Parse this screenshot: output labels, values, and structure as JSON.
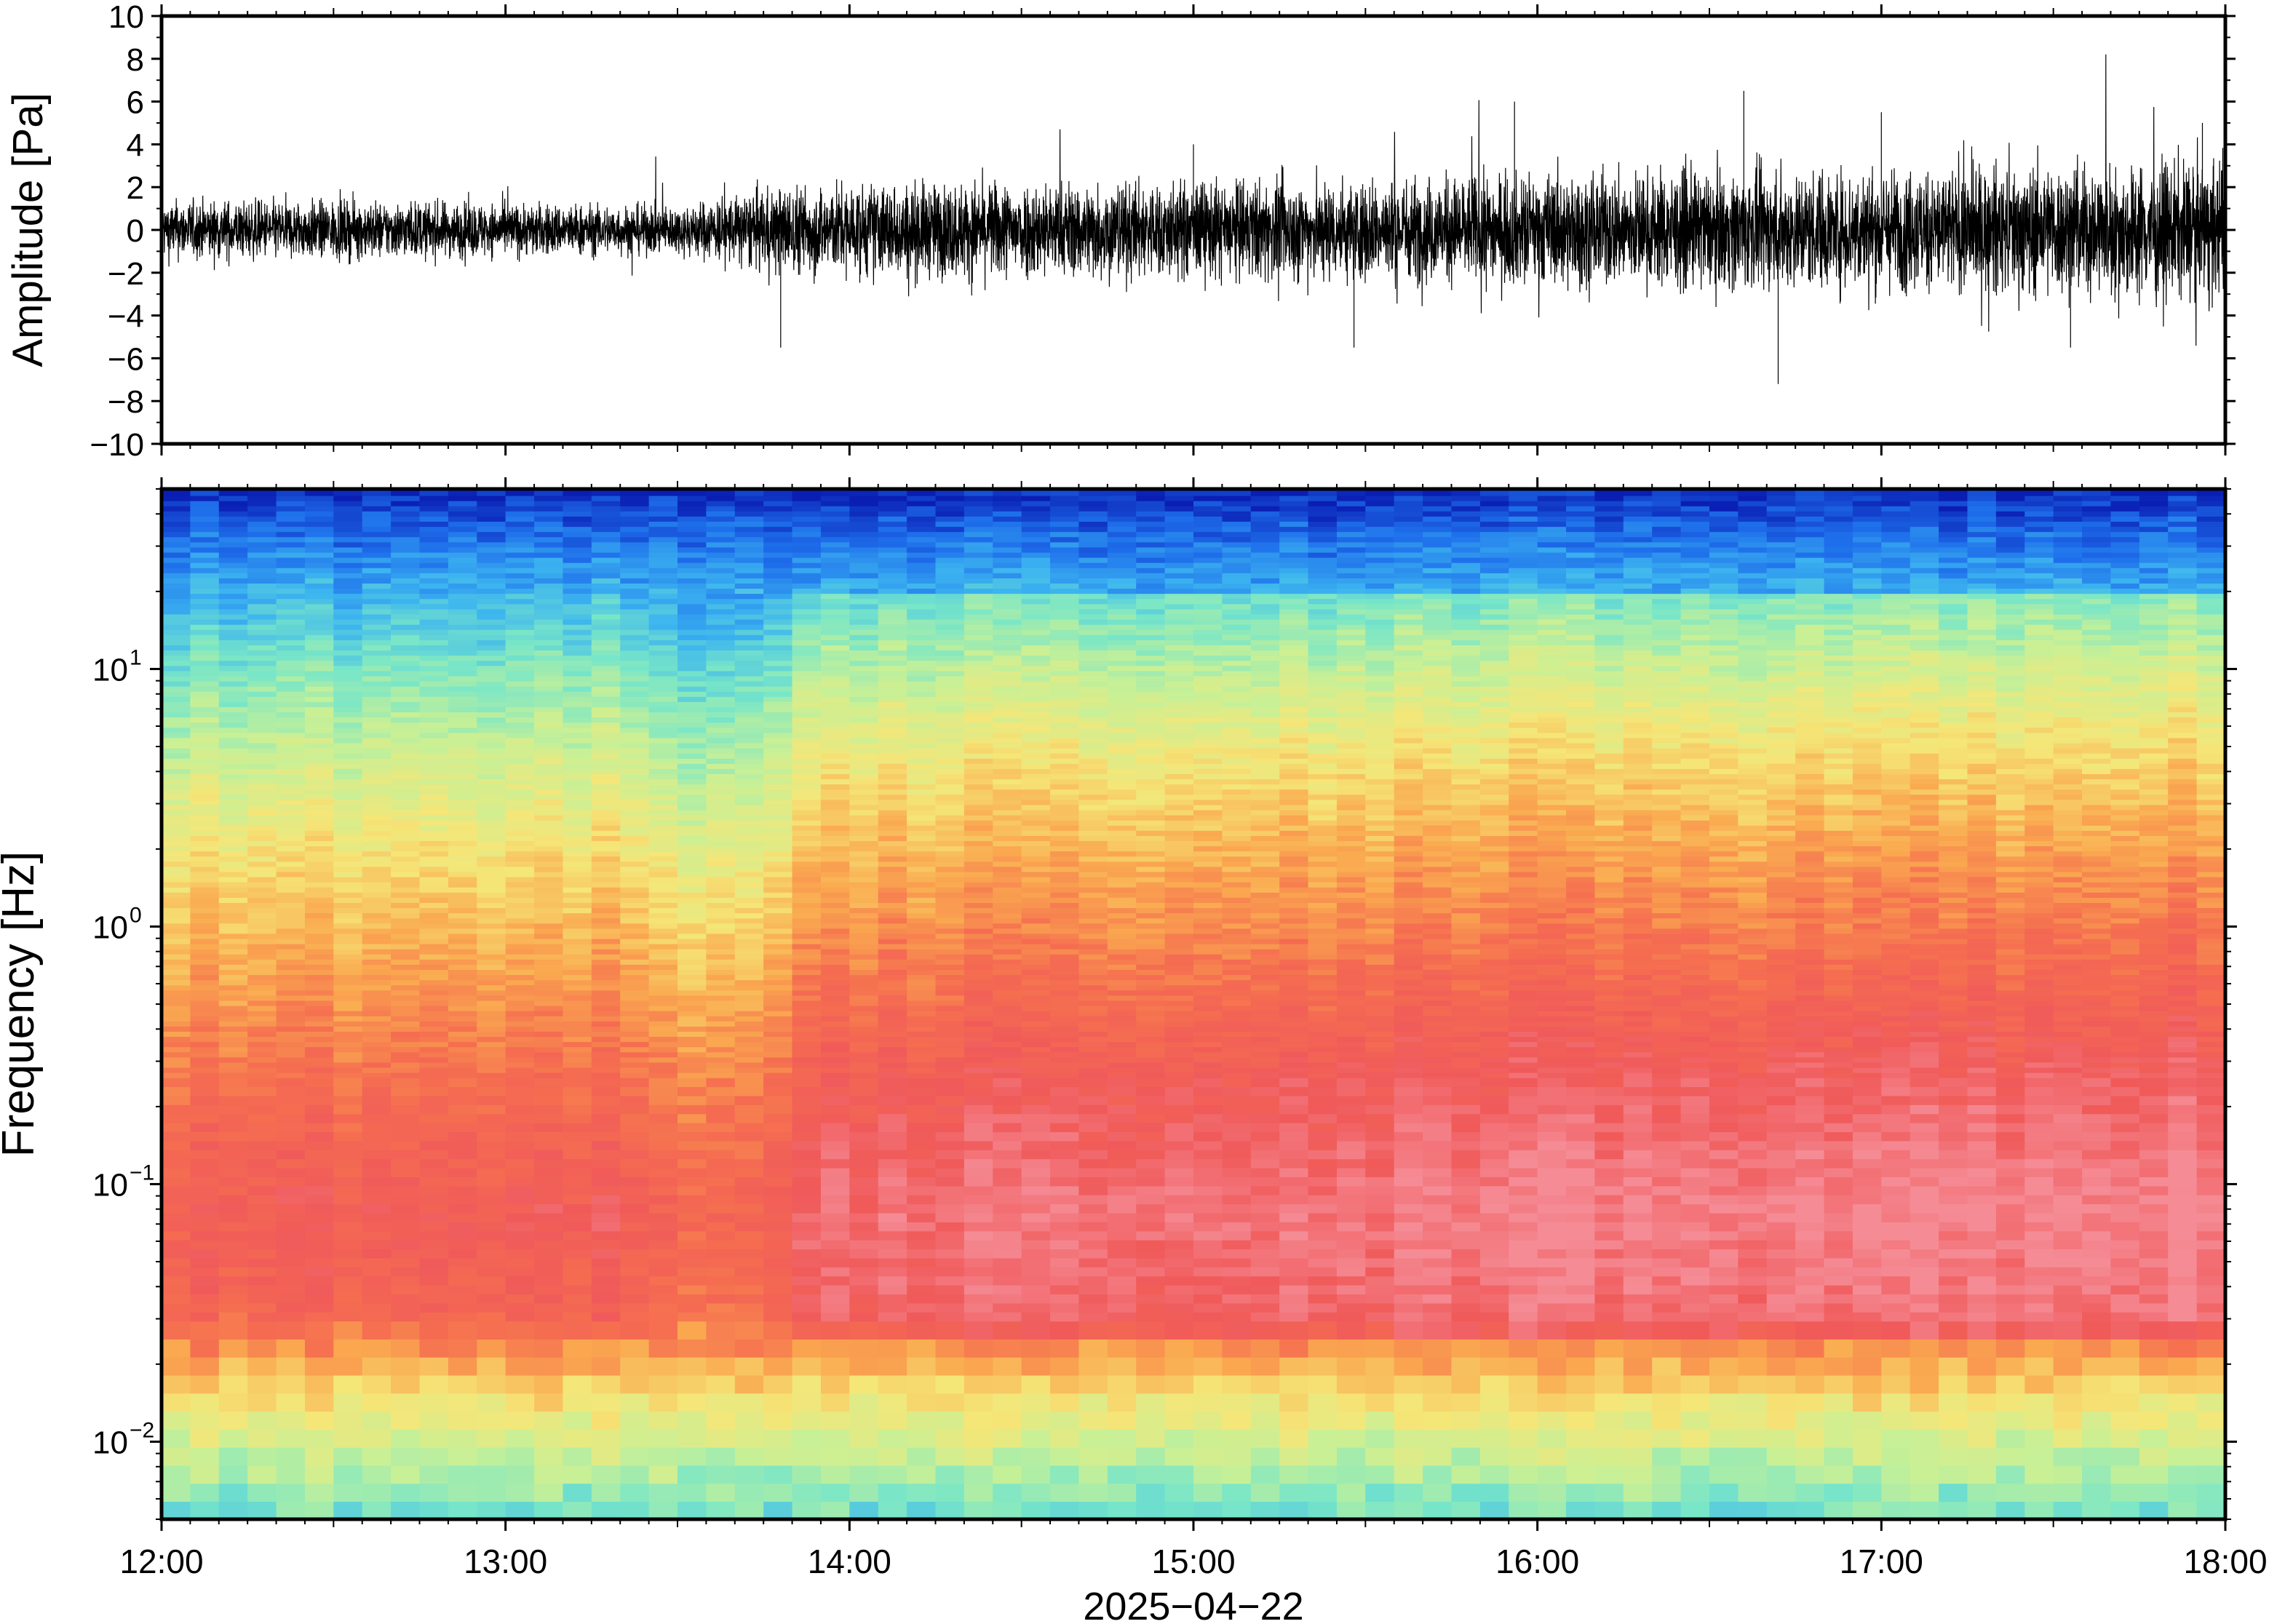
{
  "chart_data": [
    {
      "type": "line",
      "panel": "waveform",
      "ylabel": "Amplitude [Pa]",
      "ylim": [
        -10,
        10
      ],
      "y_ticks": [
        -10,
        -8,
        -6,
        -4,
        -2,
        0,
        2,
        4,
        6,
        8,
        10
      ],
      "y_tick_labels": [
        "−10",
        "−8",
        "−6",
        "−4",
        "−2",
        "0",
        "2",
        "4",
        "6",
        "8",
        "10"
      ],
      "xlim": [
        "12:00",
        "18:00"
      ],
      "series": [
        {
          "line_color": "#000000",
          "envelope_time_hours": [
            12.0,
            12.5,
            13.0,
            13.5,
            13.8,
            14.0,
            14.5,
            15.0,
            15.5,
            16.0,
            16.5,
            17.0,
            17.5,
            18.0
          ],
          "envelope_amplitude_pa": [
            1.2,
            1.2,
            1.1,
            1.0,
            1.8,
            1.9,
            2.0,
            2.0,
            2.1,
            2.3,
            2.4,
            2.5,
            2.7,
            2.8
          ],
          "peaks": [
            {
              "time": "13:48",
              "value": -5.5
            },
            {
              "time": "15:00",
              "value": 4.0
            },
            {
              "time": "15:28",
              "value": -5.5
            },
            {
              "time": "15:56",
              "value": 6.0
            },
            {
              "time": "16:36",
              "value": 6.5
            },
            {
              "time": "16:42",
              "value": -7.2
            },
            {
              "time": "17:00",
              "value": 5.5
            },
            {
              "time": "17:33",
              "value": -5.5
            },
            {
              "time": "17:56",
              "value": 5.0
            }
          ]
        }
      ]
    },
    {
      "type": "heatmap",
      "panel": "spectrogram",
      "ylabel": "Frequency [Hz]",
      "yscale": "log",
      "ylim_hz": [
        0.005,
        50
      ],
      "y_ticks_hz": [
        0.01,
        0.1,
        1,
        10
      ],
      "y_tick_labels": [
        {
          "base": "10",
          "exp": "−2"
        },
        {
          "base": "10",
          "exp": "−1"
        },
        {
          "base": "10",
          "exp": "0"
        },
        {
          "base": "10",
          "exp": "1"
        }
      ],
      "x_tick_labels": [
        "12:00",
        "13:00",
        "14:00",
        "15:00",
        "16:00",
        "17:00",
        "18:00"
      ],
      "xlabel": "2025−04−22",
      "colormap": [
        "#0a1eb4",
        "#1e6eeb",
        "#3cb4f0",
        "#78e6c8",
        "#c8f096",
        "#f5e678",
        "#faaa50",
        "#f56e50",
        "#f05a5a",
        "#f58c96"
      ],
      "notes_profile_by_log10_freq": {
        "-2.3": "green-cyan",
        "-2.0": "yellow-green",
        "-1.6": "orange",
        "-1.2": "red-pink",
        "-0.5": "red",
        "0.0": "orange",
        "0.5": "yellow",
        "1.0": "green-cyan",
        "1.3": "light blue",
        "1.7": "dark blue"
      }
    }
  ]
}
